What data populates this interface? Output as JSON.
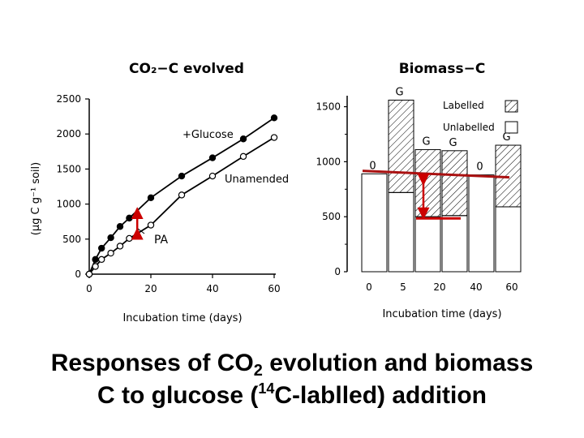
{
  "chart_data": [
    {
      "type": "line",
      "title": "CO₂−C evolved",
      "xlabel": "Incubation time (days)",
      "ylabel": "(μg C g⁻¹ soil)",
      "xlim": [
        0,
        60
      ],
      "ylim": [
        0,
        2500
      ],
      "xticks": [
        "0",
        "20",
        "40",
        "60"
      ],
      "yticks": [
        "0",
        "500",
        "1000",
        "1500",
        "2000",
        "2500"
      ],
      "grid": false,
      "series": [
        {
          "name": "+Glucose",
          "marker": "filled-circle",
          "x": [
            0,
            2,
            4,
            7,
            10,
            13,
            20,
            30,
            40,
            50,
            60
          ],
          "y": [
            0,
            210,
            370,
            520,
            680,
            800,
            1090,
            1400,
            1660,
            1930,
            2230
          ]
        },
        {
          "name": "Unamended",
          "marker": "open-circle",
          "x": [
            0,
            2,
            4,
            7,
            10,
            13,
            20,
            30,
            40,
            50,
            60
          ],
          "y": [
            0,
            110,
            210,
            300,
            400,
            510,
            700,
            1130,
            1400,
            1680,
            1950
          ]
        }
      ],
      "annotations": [
        {
          "text": "PA",
          "x": 14,
          "y1": 520,
          "y2": 930,
          "color": "#cc0000"
        }
      ]
    },
    {
      "type": "bar",
      "stacked": true,
      "title": "Biomass−C",
      "xlabel": "Incubation time (days)",
      "categories": [
        "0",
        "5",
        "20",
        "40",
        "60"
      ],
      "ylim": [
        0,
        1600
      ],
      "yticks": [
        "0",
        "500",
        "1000",
        "1500"
      ],
      "legend": {
        "placement": "top-right",
        "entries": [
          "Labelled",
          "Unlabelled"
        ]
      },
      "bars": [
        {
          "category": "0",
          "unlabelled": 890,
          "labelled": 0,
          "label": "0"
        },
        {
          "category": "5",
          "unlabelled": 720,
          "labelled": 840,
          "label": "G"
        },
        {
          "category": "20",
          "unlabelled": 500,
          "labelled": 610,
          "label": "G"
        },
        {
          "category": "40",
          "unlabelled": 510,
          "labelled": 590,
          "label": "G"
        },
        {
          "category": "60a",
          "unlabelled": 880,
          "labelled": 0,
          "label": "0"
        },
        {
          "category": "60b",
          "unlabelled": 590,
          "labelled": 560,
          "label": "G"
        }
      ],
      "annotations": [
        {
          "type": "reference-line",
          "y": 880,
          "color": "#aa1111"
        },
        {
          "type": "arrow",
          "y1": 500,
          "y2": 880,
          "color": "#cc0000"
        }
      ],
      "colors": {
        "labelled": "hatched",
        "unlabelled": "#ffffff"
      }
    }
  ],
  "caption": {
    "line1_pre": "Responses of CO",
    "line1_sub": "2",
    "line1_post": " evolution and biomass",
    "line2_pre": "C to glucose (",
    "line2_sup": "14",
    "line2_post": "C-lablled) addition"
  }
}
